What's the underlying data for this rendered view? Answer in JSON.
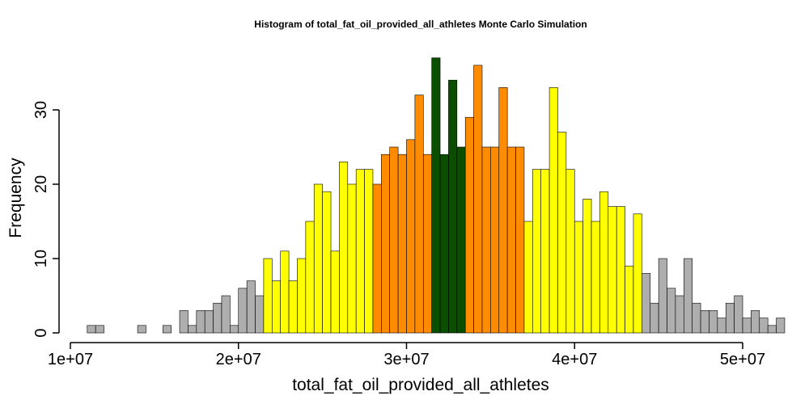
{
  "chart_data": {
    "type": "bar",
    "title": "Histogram of  total_fat_oil_provided_all_athletes  Monte Carlo Simulation",
    "xlabel": "total_fat_oil_provided_all_athletes",
    "ylabel": "Frequency",
    "xlim": [
      10000000,
      50000000
    ],
    "ylim": [
      0,
      37
    ],
    "x_ticks": [
      10000000,
      20000000,
      30000000,
      40000000,
      50000000
    ],
    "x_tick_labels": [
      "1e+07",
      "2e+07",
      "3e+07",
      "4e+07",
      "5e+07"
    ],
    "y_ticks": [
      0,
      10,
      20,
      30
    ],
    "y_tick_labels": [
      "0",
      "10",
      "20",
      "30"
    ],
    "bin_start": 11000000,
    "bin_width": 500000,
    "values": [
      1,
      1,
      0,
      0,
      0,
      0,
      1,
      0,
      0,
      1,
      0,
      3,
      1,
      3,
      3,
      4,
      5,
      1,
      6,
      7,
      5,
      10,
      7,
      11,
      7,
      10,
      15,
      20,
      19,
      11,
      23,
      20,
      22,
      22,
      20,
      24,
      25,
      24,
      26,
      32,
      24,
      37,
      24,
      34,
      25,
      29,
      36,
      25,
      25,
      33,
      25,
      25,
      15,
      22,
      22,
      33,
      27,
      22,
      15,
      18,
      15,
      19,
      17,
      17,
      9,
      16,
      8,
      4,
      10,
      6,
      5,
      10,
      4,
      3,
      3,
      2,
      4,
      5,
      2,
      3,
      2,
      1,
      2
    ],
    "colors": {
      "tail": "#aeaeae",
      "outer": "#ffff00",
      "inner": "#ff8c00",
      "center": "#0a4f00",
      "border": "#000000"
    }
  }
}
